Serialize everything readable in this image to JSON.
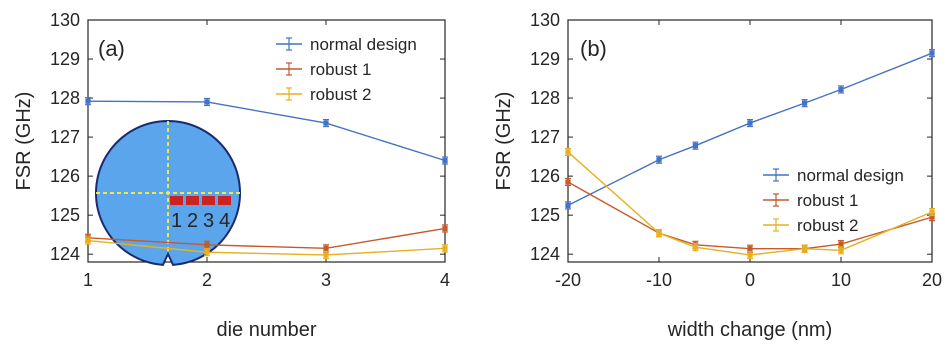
{
  "chart_data": [
    {
      "type": "line",
      "panel_label": "(a)",
      "xlabel": "die number",
      "ylabel": "FSR (GHz)",
      "xlim": [
        1,
        4
      ],
      "ylim": [
        123.8,
        130
      ],
      "xticks": [
        "1",
        "2",
        "3",
        "4"
      ],
      "yticks": [
        "124",
        "125",
        "126",
        "127",
        "128",
        "129",
        "130"
      ],
      "legend_position": "top-right",
      "x": [
        1,
        2,
        3,
        4
      ],
      "series": [
        {
          "name": "normal design",
          "color": "#4472c4",
          "values": [
            127.92,
            127.9,
            127.36,
            126.4
          ]
        },
        {
          "name": "robust 1",
          "color": "#c55a2a",
          "values": [
            124.42,
            124.24,
            124.15,
            124.66
          ]
        },
        {
          "name": "robust 2",
          "color": "#e8b020",
          "values": [
            124.35,
            124.05,
            123.98,
            124.15
          ]
        }
      ],
      "inset": {
        "description": "wafer-icon",
        "die_labels": [
          "1",
          "2",
          "3",
          "4"
        ],
        "wafer_color": "#5aa5ec",
        "die_color": "#cc2222"
      }
    },
    {
      "type": "line",
      "panel_label": "(b)",
      "xlabel": "width change (nm)",
      "ylabel": "FSR (GHz)",
      "xlim": [
        -20,
        20
      ],
      "ylim": [
        123.8,
        130
      ],
      "xticks": [
        "-20",
        "-10",
        "0",
        "10",
        "20"
      ],
      "yticks": [
        "124",
        "125",
        "126",
        "127",
        "128",
        "129",
        "130"
      ],
      "legend_position": "center-right",
      "x": [
        -20,
        -10,
        -6,
        0,
        6,
        10,
        20
      ],
      "series": [
        {
          "name": "normal design",
          "color": "#4472c4",
          "values": [
            125.25,
            126.42,
            126.78,
            127.36,
            127.87,
            128.22,
            129.15
          ]
        },
        {
          "name": "robust 1",
          "color": "#c55a2a",
          "values": [
            125.85,
            124.54,
            124.24,
            124.14,
            124.14,
            124.26,
            124.95
          ]
        },
        {
          "name": "robust 2",
          "color": "#e8b020",
          "values": [
            126.62,
            124.54,
            124.18,
            123.98,
            124.14,
            124.1,
            125.08
          ]
        }
      ]
    }
  ]
}
